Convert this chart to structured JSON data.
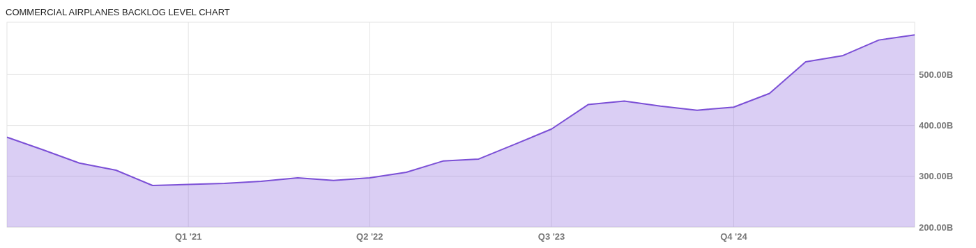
{
  "chart_data": {
    "type": "area",
    "title": "COMMERCIAL AIRPLANES BACKLOG LEVEL CHART",
    "x": [
      "2019-12-31",
      "2020-03-31",
      "2020-06-30",
      "2020-09-30",
      "2020-12-31",
      "2021-03-31",
      "2021-06-30",
      "2021-09-30",
      "2021-12-31",
      "2022-03-31",
      "2022-06-30",
      "2022-09-30",
      "2022-12-31",
      "2023-03-31",
      "2023-06-30",
      "2023-09-30",
      "2023-12-31",
      "2024-03-31",
      "2024-06-30",
      "2024-09-30",
      "2024-12-31",
      "2025-03-31",
      "2025-06-30",
      "2025-09-30",
      "2025-12-31",
      "2026-03-31"
    ],
    "series": [
      {
        "color": "#7b4fd6",
        "values": [
          377,
          352,
          326,
          312,
          282,
          284,
          286,
          290,
          297,
          292,
          297,
          308,
          330,
          334,
          363,
          393,
          441,
          448,
          438,
          430,
          436,
          463,
          525,
          537,
          568,
          578
        ]
      }
    ],
    "xlim": [
      "2019-12-31",
      "2026-03-31"
    ],
    "xticks": [
      {
        "value": "2021-03-31",
        "label": "Q1 '21"
      },
      {
        "value": "2022-06-30",
        "label": "Q2 '22"
      },
      {
        "value": "2023-09-30",
        "label": "Q3 '23"
      },
      {
        "value": "2024-12-31",
        "label": "Q4 '24"
      }
    ],
    "ylim": [
      200,
      603
    ],
    "yticks": [
      {
        "value": 200,
        "label": "200.00B"
      },
      {
        "value": 300,
        "label": "300.00B"
      },
      {
        "value": 400,
        "label": "400.00B"
      },
      {
        "value": 500,
        "label": "500.00B"
      }
    ],
    "grid": true
  }
}
